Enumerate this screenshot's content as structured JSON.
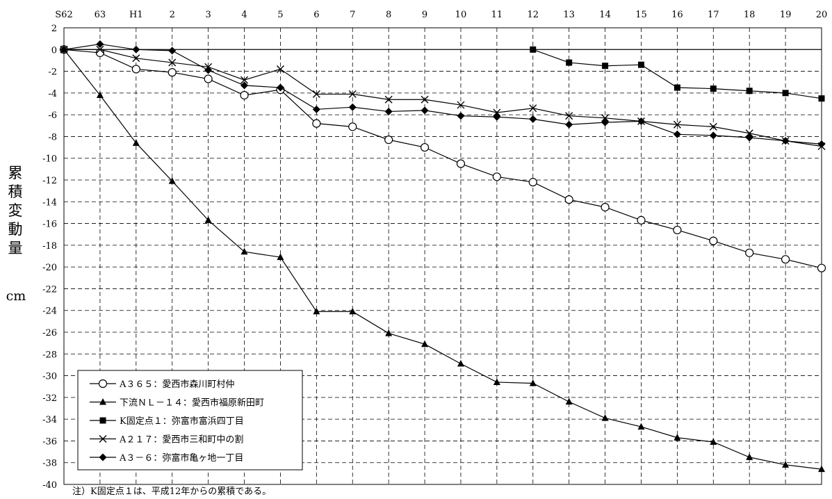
{
  "chart_data": {
    "type": "line",
    "categories": [
      "S62",
      "63",
      "H1",
      "2",
      "3",
      "4",
      "5",
      "6",
      "7",
      "8",
      "9",
      "10",
      "11",
      "12",
      "13",
      "14",
      "15",
      "16",
      "17",
      "18",
      "19",
      "20"
    ],
    "ylim": [
      -40,
      2
    ],
    "ytick_step": 2,
    "ylabel_chars": [
      "累",
      "積",
      "変",
      "動",
      "量"
    ],
    "yunit": "cm",
    "grid": true,
    "legend_position": "bottom-left",
    "series": [
      {
        "name": "A365：愛西市森川町村仲",
        "marker": "circle-open",
        "values": [
          0,
          -0.3,
          -1.8,
          -2.1,
          -2.7,
          -4.2,
          -3.7,
          -6.8,
          -7.1,
          -8.3,
          -9.0,
          -10.5,
          -11.7,
          -12.2,
          -13.8,
          -14.5,
          -15.7,
          -16.6,
          -17.6,
          -18.7,
          -19.3,
          -20.1
        ]
      },
      {
        "name": "下流NL－14：愛西市福原新田町",
        "marker": "triangle-filled",
        "values": [
          0,
          -4.2,
          -8.6,
          -12.1,
          -15.7,
          -18.6,
          -19.1,
          -24.1,
          -24.1,
          -26.1,
          -27.1,
          -28.9,
          -30.6,
          -30.7,
          -32.4,
          -33.9,
          -34.7,
          -35.7,
          -36.1,
          -37.5,
          -38.2,
          -38.6
        ]
      },
      {
        "name": "K固定点1：弥富市富浜四丁目",
        "marker": "square-filled",
        "values": [
          null,
          null,
          null,
          null,
          null,
          null,
          null,
          null,
          null,
          null,
          null,
          null,
          null,
          0,
          -1.2,
          -1.5,
          -1.4,
          -3.5,
          -3.6,
          -3.8,
          -4.0,
          -4.5
        ]
      },
      {
        "name": "A217：愛西市三和町中の割",
        "marker": "cross",
        "values": [
          0,
          0,
          -0.8,
          -1.2,
          -1.6,
          -2.8,
          -1.8,
          -4.1,
          -4.1,
          -4.6,
          -4.6,
          -5.1,
          -5.8,
          -5.4,
          -6.1,
          -6.3,
          -6.6,
          -6.9,
          -7.1,
          -7.7,
          -8.4,
          -8.9
        ]
      },
      {
        "name": "A3－6：弥富市亀ヶ地一丁目",
        "marker": "diamond-filled",
        "values": [
          0,
          0.5,
          0,
          -0.1,
          -1.9,
          -3.3,
          -3.5,
          -5.5,
          -5.3,
          -5.7,
          -5.6,
          -6.1,
          -6.2,
          -6.4,
          -6.9,
          -6.7,
          -6.6,
          -7.8,
          -7.9,
          -8.1,
          -8.4,
          -8.7
        ]
      }
    ],
    "legend": [
      "A３６５：愛西市森川町村仲",
      "下流ＮＬ－１４：愛西市福原新田町",
      "K固定点１：弥富市富浜四丁目",
      "A２１７：愛西市三和町中の割",
      "A３－６：弥富市亀ヶ地一丁目"
    ],
    "note": "注）K固定点１は、平成12年からの累積である。"
  }
}
